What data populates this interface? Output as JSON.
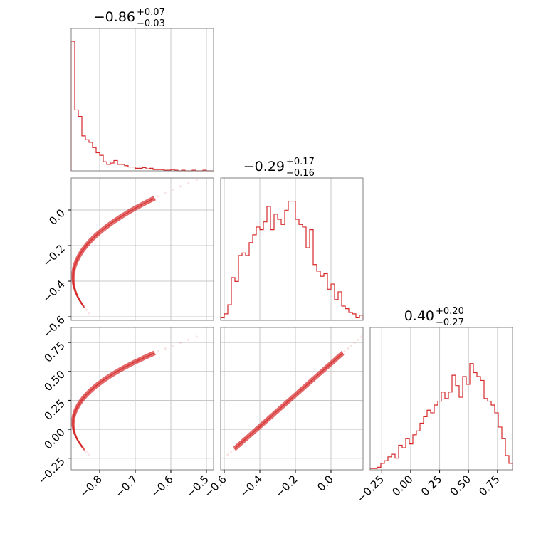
{
  "chart_data": {
    "type": "corner",
    "color": "#d62728",
    "params": [
      {
        "name": "",
        "median": -0.86,
        "err_plus": "+0.07",
        "err_minus": "−0.03",
        "title": {
          "main": "−0.86",
          "sup": "+0.07",
          "sub": "−0.03"
        },
        "range": [
          -0.88,
          -0.48
        ],
        "ticks": [
          {
            "v": -0.8,
            "label": "−0.8"
          },
          {
            "v": -0.7,
            "label": "−0.7"
          },
          {
            "v": -0.6,
            "label": "−0.6"
          },
          {
            "v": -0.5,
            "label": "−0.5"
          }
        ],
        "hist_shape": [
          1.0,
          0.47,
          0.42,
          0.27,
          0.24,
          0.22,
          0.18,
          0.14,
          0.12,
          0.07,
          0.05,
          0.06,
          0.08,
          0.05,
          0.05,
          0.04,
          0.03,
          0.03,
          0.02,
          0.02,
          0.025,
          0.015,
          0.02,
          0.01,
          0.01,
          0.01,
          0.005,
          0.005,
          0.01,
          0.005,
          0.0,
          0.005,
          0.0,
          0.0,
          0.005,
          0.0,
          0.0,
          0.005,
          0.0,
          0.0
        ]
      },
      {
        "name": "",
        "median": -0.29,
        "err_plus": "+0.17",
        "err_minus": "−0.16",
        "title": {
          "main": "−0.29",
          "sup": "+0.17",
          "sub": "−0.16"
        },
        "range": [
          -0.62,
          0.18
        ],
        "ticks": [
          {
            "v": -0.6,
            "label": "−0.6"
          },
          {
            "v": -0.4,
            "label": "−0.4"
          },
          {
            "v": -0.2,
            "label": "−0.2"
          },
          {
            "v": 0.0,
            "label": "0.0"
          }
        ],
        "hist_shape": [
          0.02,
          0.05,
          0.12,
          0.33,
          0.3,
          0.5,
          0.52,
          0.5,
          0.6,
          0.66,
          0.72,
          0.7,
          0.76,
          0.88,
          0.7,
          0.82,
          0.78,
          0.74,
          0.85,
          0.92,
          0.92,
          0.78,
          0.74,
          0.72,
          0.56,
          0.7,
          0.43,
          0.38,
          0.34,
          0.36,
          0.24,
          0.28,
          0.16,
          0.22,
          0.11,
          0.09,
          0.06,
          0.05,
          0.02,
          0.04
        ]
      },
      {
        "name": "",
        "median": 0.4,
        "err_plus": "+0.20",
        "err_minus": "−0.27",
        "title": {
          "main": "0.40",
          "sup": "+0.20",
          "sub": "−0.27"
        },
        "range": [
          -0.35,
          0.88
        ],
        "ticks": [
          {
            "v": -0.25,
            "label": "−0.25"
          },
          {
            "v": 0.0,
            "label": "0.00"
          },
          {
            "v": 0.25,
            "label": "0.25"
          },
          {
            "v": 0.5,
            "label": "0.50"
          },
          {
            "v": 0.75,
            "label": "0.75"
          }
        ],
        "hist_shape": [
          0.01,
          0.01,
          0.02,
          0.05,
          0.07,
          0.1,
          0.12,
          0.09,
          0.19,
          0.17,
          0.24,
          0.2,
          0.27,
          0.3,
          0.36,
          0.41,
          0.46,
          0.44,
          0.5,
          0.53,
          0.6,
          0.55,
          0.6,
          0.73,
          0.65,
          0.56,
          0.72,
          0.66,
          0.82,
          0.75,
          0.72,
          0.69,
          0.55,
          0.53,
          0.5,
          0.44,
          0.33,
          0.24,
          0.11,
          0.05
        ]
      }
    ]
  }
}
